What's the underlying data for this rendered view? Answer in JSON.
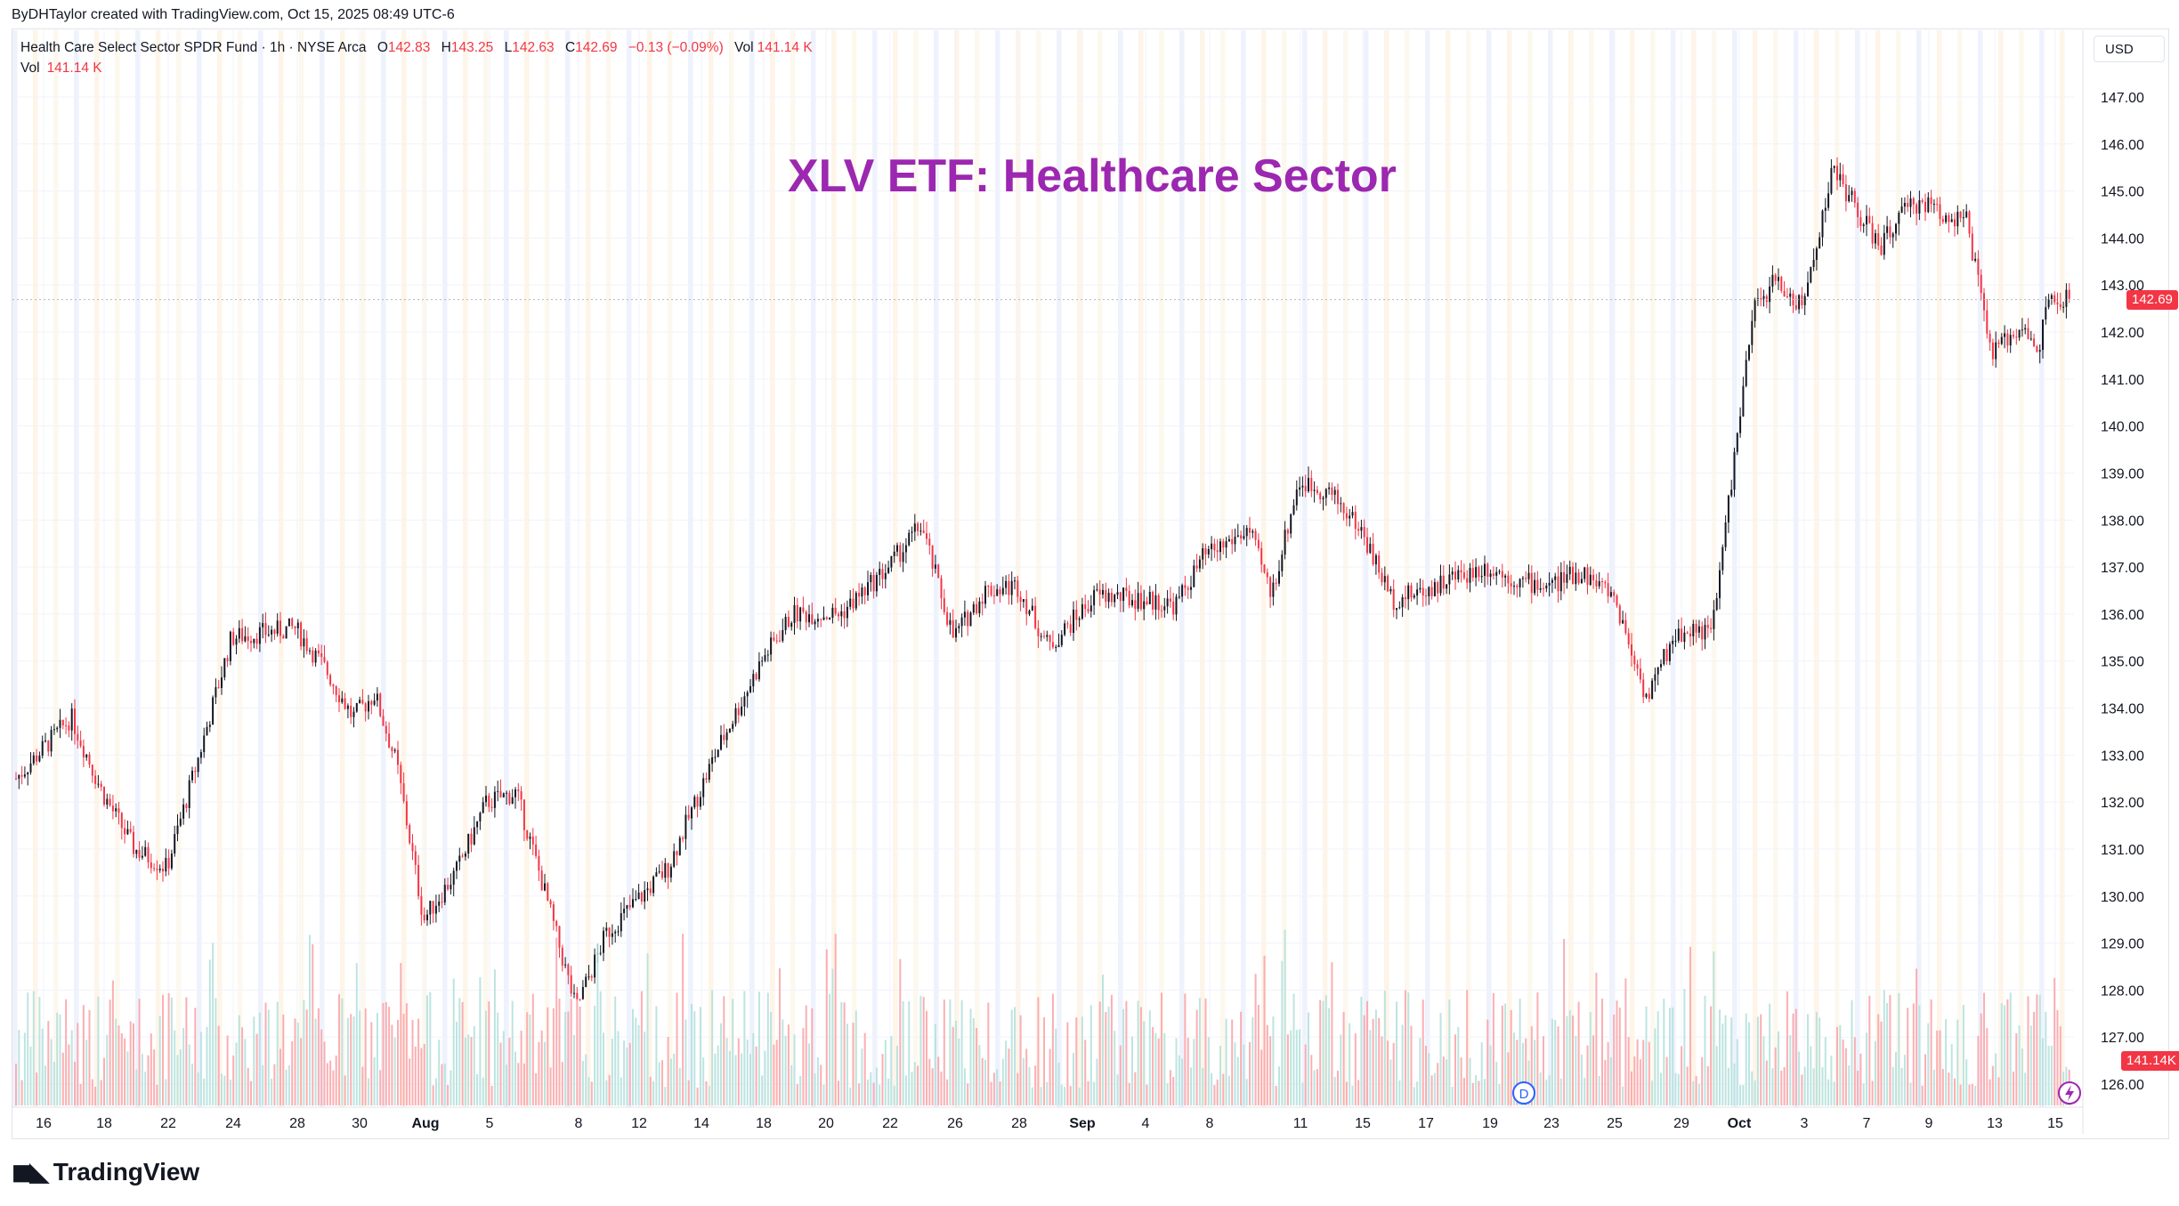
{
  "credit": "ByDHTaylor created with TradingView.com, Oct 15, 2025 08:49 UTC-6",
  "legend": {
    "symbol": "Health Care Select Sector SPDR Fund · 1h · NYSE Arca",
    "open_label": "O",
    "open": "142.83",
    "high_label": "H",
    "high": "143.25",
    "low_label": "L",
    "low": "142.63",
    "close_label": "C",
    "close": "142.69",
    "change": "−0.13 (−0.09%)",
    "vol_label": "Vol",
    "vol": "141.14 K",
    "vol2_label": "Vol",
    "vol2": "141.14 K"
  },
  "currency": "USD",
  "brand": "TradingView",
  "colors": {
    "up": "#089981",
    "down": "#f23645",
    "title": "#9c27b0",
    "candle": "#131722"
  },
  "chart_data": {
    "type": "candlestick",
    "title": "XLV ETF: Healthcare Sector",
    "interval": "1h",
    "ylim": [
      125.5,
      147.5
    ],
    "yticks": [
      "147.00",
      "146.00",
      "145.00",
      "144.00",
      "143.00",
      "142.00",
      "141.00",
      "140.00",
      "139.00",
      "138.00",
      "137.00",
      "136.00",
      "135.00",
      "134.00",
      "133.00",
      "132.00",
      "131.00",
      "130.00",
      "129.00",
      "128.00",
      "127.00",
      "126.00"
    ],
    "xticks": [
      "16",
      "18",
      "22",
      "24",
      "28",
      "30",
      "Aug",
      "5",
      "8",
      "12",
      "14",
      "18",
      "20",
      "22",
      "26",
      "28",
      "Sep",
      "4",
      "8",
      "11",
      "15",
      "17",
      "19",
      "23",
      "25",
      "29",
      "Oct",
      "3",
      "7",
      "9",
      "13",
      "15"
    ],
    "last_price": "142.69",
    "last_volume": "141.14K",
    "dividend_marker": "D",
    "price_path": [
      {
        "x": "16",
        "y": 132.5
      },
      {
        "x": "16",
        "y": 133.8
      },
      {
        "x": "18",
        "y": 132.2
      },
      {
        "x": "18",
        "y": 131.0
      },
      {
        "x": "22",
        "y": 130.6
      },
      {
        "x": "22",
        "y": 133.0
      },
      {
        "x": "24",
        "y": 135.5
      },
      {
        "x": "24",
        "y": 135.6
      },
      {
        "x": "28",
        "y": 135.7
      },
      {
        "x": "28",
        "y": 134.8
      },
      {
        "x": "30",
        "y": 133.8
      },
      {
        "x": "30",
        "y": 134.3
      },
      {
        "x": "30",
        "y": 132.8
      },
      {
        "x": "Aug",
        "y": 129.5
      },
      {
        "x": "Aug",
        "y": 130.5
      },
      {
        "x": "5",
        "y": 132.0
      },
      {
        "x": "5",
        "y": 132.2
      },
      {
        "x": "5",
        "y": 130.0
      },
      {
        "x": "8",
        "y": 127.6
      },
      {
        "x": "8",
        "y": 129.2
      },
      {
        "x": "12",
        "y": 129.9
      },
      {
        "x": "12",
        "y": 130.6
      },
      {
        "x": "14",
        "y": 133.0
      },
      {
        "x": "18",
        "y": 135.0
      },
      {
        "x": "18",
        "y": 136.0
      },
      {
        "x": "20",
        "y": 136.0
      },
      {
        "x": "22",
        "y": 137.0
      },
      {
        "x": "22",
        "y": 137.9
      },
      {
        "x": "26",
        "y": 135.5
      },
      {
        "x": "26",
        "y": 136.5
      },
      {
        "x": "28",
        "y": 136.6
      },
      {
        "x": "28",
        "y": 135.3
      },
      {
        "x": "Sep",
        "y": 136.4
      },
      {
        "x": "4",
        "y": 136.3
      },
      {
        "x": "4",
        "y": 136.2
      },
      {
        "x": "8",
        "y": 137.2
      },
      {
        "x": "8",
        "y": 137.5
      },
      {
        "x": "8",
        "y": 137.8
      },
      {
        "x": "8",
        "y": 136.4
      },
      {
        "x": "11",
        "y": 138.8
      },
      {
        "x": "11",
        "y": 138.6
      },
      {
        "x": "15",
        "y": 137.8
      },
      {
        "x": "15",
        "y": 136.3
      },
      {
        "x": "17",
        "y": 136.5
      },
      {
        "x": "17",
        "y": 136.8
      },
      {
        "x": "19",
        "y": 137.0
      },
      {
        "x": "19",
        "y": 136.7
      },
      {
        "x": "23",
        "y": 136.6
      },
      {
        "x": "23",
        "y": 136.9
      },
      {
        "x": "25",
        "y": 136.4
      },
      {
        "x": "25",
        "y": 134.2
      },
      {
        "x": "29",
        "y": 135.5
      },
      {
        "x": "29",
        "y": 135.7
      },
      {
        "x": "29",
        "y": 135.6
      },
      {
        "x": "Oct",
        "y": 139.0
      },
      {
        "x": "Oct",
        "y": 142.5
      },
      {
        "x": "Oct",
        "y": 143.1
      },
      {
        "x": "3",
        "y": 142.5
      },
      {
        "x": "3",
        "y": 145.5
      },
      {
        "x": "7",
        "y": 144.5
      },
      {
        "x": "7",
        "y": 143.8
      },
      {
        "x": "7",
        "y": 144.5
      },
      {
        "x": "9",
        "y": 144.8
      },
      {
        "x": "9",
        "y": 144.5
      },
      {
        "x": "9",
        "y": 144.4
      },
      {
        "x": "13",
        "y": 141.5
      },
      {
        "x": "13",
        "y": 142.2
      },
      {
        "x": "15",
        "y": 141.4
      },
      {
        "x": "15",
        "y": 142.6
      },
      {
        "x": "15",
        "y": 142.69
      }
    ]
  }
}
